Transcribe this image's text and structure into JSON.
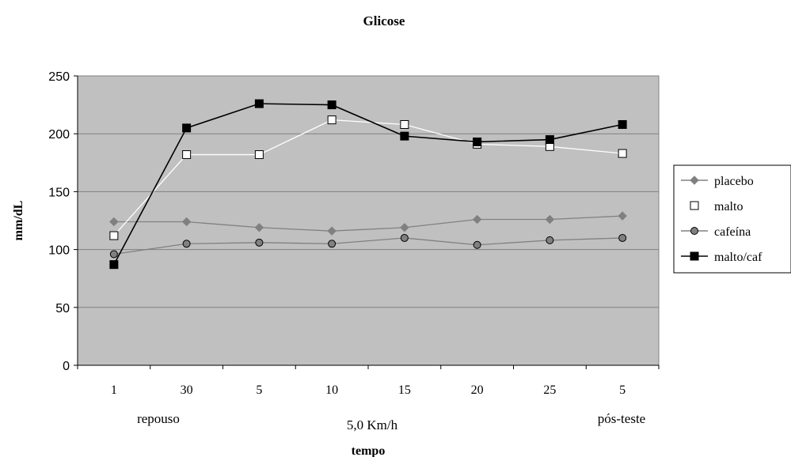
{
  "chart_data": {
    "type": "line",
    "title": "Glicose",
    "ylabel": "mm/dL",
    "xlabel": "tempo",
    "ylim": [
      0,
      250
    ],
    "yticks": [
      "0",
      "50",
      "100",
      "150",
      "200",
      "250"
    ],
    "categories": [
      "1",
      "30",
      "5",
      "10",
      "15",
      "20",
      "25",
      "5"
    ],
    "category_groups": [
      "repouso",
      "5,0 Km/h",
      "pós-teste"
    ],
    "grid": true,
    "legend_position": "right",
    "series": [
      {
        "name": "placebo",
        "values": [
          124,
          124,
          119,
          116,
          119,
          126,
          126,
          129
        ],
        "color": "#808080",
        "marker": "diamond"
      },
      {
        "name": "malto",
        "values": [
          112,
          182,
          182,
          212,
          208,
          191,
          189,
          183
        ],
        "color": "#ffffff",
        "marker": "square-open"
      },
      {
        "name": "cafeína",
        "values": [
          96,
          105,
          106,
          105,
          110,
          104,
          108,
          110
        ],
        "color": "#808080",
        "marker": "circle"
      },
      {
        "name": "malto/caf",
        "values": [
          87,
          205,
          226,
          225,
          198,
          193,
          195,
          208
        ],
        "color": "#000000",
        "marker": "square-filled"
      }
    ],
    "colors": {
      "plot_background": "#c0c0c0",
      "gridline": "#808080"
    }
  }
}
